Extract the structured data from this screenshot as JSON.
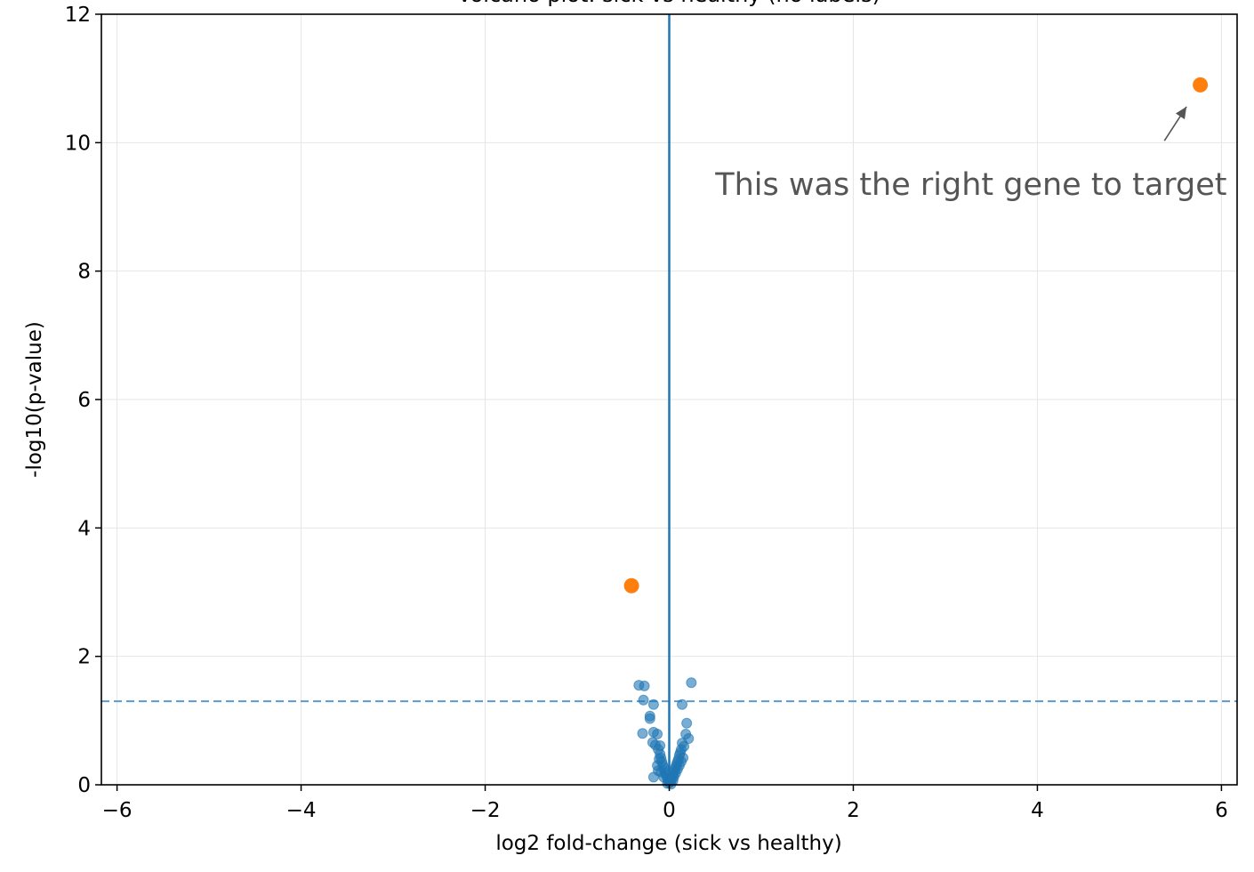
{
  "chart_data": {
    "type": "scatter",
    "title": "Volcano plot: sick vs healthy (no labels)",
    "xlabel": "log2 fold-change (sick vs healthy)",
    "ylabel": "-log10(p-value)",
    "xlim": [
      -6.17,
      6.17
    ],
    "ylim": [
      0,
      12
    ],
    "xticks": [
      -6,
      -4,
      -2,
      0,
      2,
      4,
      6
    ],
    "xtick_labels": [
      "−6",
      "−4",
      "−2",
      "0",
      "2",
      "4",
      "6"
    ],
    "yticks": [
      0,
      2,
      4,
      6,
      8,
      10,
      12
    ],
    "ytick_labels": [
      "0",
      "2",
      "4",
      "6",
      "8",
      "10",
      "12"
    ],
    "grid": true,
    "threshold_line": {
      "y": 1.3,
      "style": "dashed",
      "color": "#5a9bd0"
    },
    "zero_line": {
      "x": 0,
      "color": "#1f77b4"
    },
    "series": [
      {
        "color": "#1f77b4",
        "points": [
          [
            -0.33,
            1.55
          ],
          [
            -0.27,
            1.54
          ],
          [
            0.24,
            1.59
          ],
          [
            -0.28,
            1.32
          ],
          [
            -0.17,
            1.25
          ],
          [
            0.14,
            1.25
          ],
          [
            -0.21,
            1.07
          ],
          [
            -0.21,
            1.03
          ],
          [
            0.19,
            0.96
          ],
          [
            -0.29,
            0.8
          ],
          [
            -0.17,
            0.82
          ],
          [
            -0.13,
            0.79
          ],
          [
            0.18,
            0.79
          ],
          [
            0.21,
            0.72
          ],
          [
            0.14,
            0.65
          ],
          [
            -0.1,
            0.61
          ],
          [
            -0.17,
            0.12
          ],
          [
            -0.18,
            0.66
          ],
          [
            -0.15,
            0.62
          ],
          [
            -0.12,
            0.55
          ],
          [
            -0.1,
            0.48
          ],
          [
            -0.09,
            0.42
          ],
          [
            -0.08,
            0.36
          ],
          [
            -0.07,
            0.31
          ],
          [
            -0.06,
            0.27
          ],
          [
            -0.05,
            0.22
          ],
          [
            -0.04,
            0.18
          ],
          [
            -0.03,
            0.14
          ],
          [
            -0.02,
            0.1
          ],
          [
            -0.01,
            0.06
          ],
          [
            -0.11,
            0.4
          ],
          [
            -0.13,
            0.3
          ],
          [
            -0.09,
            0.2
          ],
          [
            -0.06,
            0.12
          ],
          [
            -0.12,
            0.22
          ],
          [
            0.16,
            0.6
          ],
          [
            0.13,
            0.55
          ],
          [
            0.12,
            0.5
          ],
          [
            0.11,
            0.46
          ],
          [
            0.1,
            0.4
          ],
          [
            0.09,
            0.36
          ],
          [
            0.08,
            0.32
          ],
          [
            0.07,
            0.28
          ],
          [
            0.06,
            0.24
          ],
          [
            0.05,
            0.2
          ],
          [
            0.04,
            0.16
          ],
          [
            0.03,
            0.12
          ],
          [
            0.02,
            0.08
          ],
          [
            0.01,
            0.04
          ],
          [
            0.15,
            0.42
          ],
          [
            0.13,
            0.36
          ],
          [
            0.11,
            0.3
          ],
          [
            0.09,
            0.24
          ],
          [
            0.07,
            0.18
          ],
          [
            0.05,
            0.12
          ],
          [
            0.04,
            0.06
          ],
          [
            0.0,
            0.03
          ],
          [
            -0.02,
            0.02
          ],
          [
            0.02,
            0.01
          ]
        ]
      },
      {
        "color": "#ff7f0e",
        "points": [
          [
            5.77,
            10.9
          ],
          [
            -0.41,
            3.1
          ]
        ]
      }
    ],
    "annotation": {
      "text": "This was the right gene to target",
      "text_xy": [
        0.5,
        9.35
      ],
      "arrow_from": [
        5.38,
        10.03
      ],
      "arrow_to": [
        5.62,
        10.56
      ],
      "color": "#555555"
    }
  }
}
